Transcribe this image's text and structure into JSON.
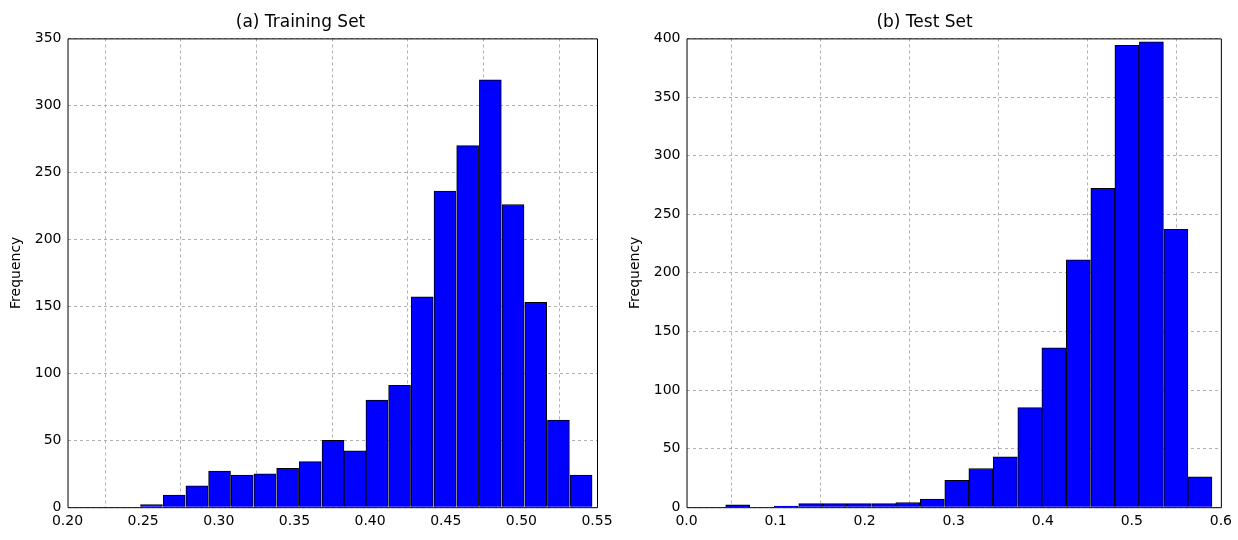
{
  "chart_data": [
    {
      "type": "histogram",
      "title": "(a) Training Set",
      "ylabel": "Frequency",
      "color": "#0000ff",
      "bins": [
        0.248,
        0.263,
        0.278,
        0.293,
        0.308,
        0.323,
        0.338,
        0.353,
        0.368,
        0.383,
        0.397,
        0.412,
        0.427,
        0.442,
        0.457,
        0.472,
        0.487,
        0.502,
        0.517,
        0.532,
        0.547
      ],
      "values": [
        2,
        9,
        16,
        27,
        24,
        25,
        29,
        34,
        50,
        42,
        80,
        91,
        157,
        236,
        270,
        319,
        226,
        153,
        65,
        24
      ],
      "xlim": [
        0.2,
        0.55
      ],
      "xticks": [
        {
          "value": 0.2,
          "label": "0.20"
        },
        {
          "value": 0.25,
          "label": "0.25"
        },
        {
          "value": 0.3,
          "label": "0.30"
        },
        {
          "value": 0.35,
          "label": "0.35"
        },
        {
          "value": 0.4,
          "label": "0.40"
        },
        {
          "value": 0.45,
          "label": "0.45"
        },
        {
          "value": 0.5,
          "label": "0.50"
        },
        {
          "value": 0.55,
          "label": "0.55"
        }
      ],
      "ylim": [
        0,
        350
      ],
      "yticks": [
        0,
        50,
        100,
        150,
        200,
        250,
        300,
        350
      ],
      "grid": true,
      "legend": false
    },
    {
      "type": "histogram",
      "title": "(b) Test Set",
      "ylabel": "Frequency",
      "color": "#0000ff",
      "bins": [
        0.044,
        0.071,
        0.098,
        0.126,
        0.153,
        0.18,
        0.208,
        0.235,
        0.262,
        0.29,
        0.317,
        0.344,
        0.372,
        0.399,
        0.426,
        0.454,
        0.481,
        0.508,
        0.536,
        0.563,
        0.59
      ],
      "values": [
        2,
        0,
        1,
        3,
        3,
        3,
        3,
        4,
        7,
        23,
        33,
        43,
        85,
        136,
        211,
        272,
        394,
        397,
        237,
        26
      ],
      "xlim": [
        0,
        0.6
      ],
      "xticks": [
        {
          "value": 0,
          "label": "0.0"
        },
        {
          "value": 0.1,
          "label": "0.1"
        },
        {
          "value": 0.2,
          "label": "0.2"
        },
        {
          "value": 0.3,
          "label": "0.3"
        },
        {
          "value": 0.4,
          "label": "0.4"
        },
        {
          "value": 0.5,
          "label": "0.5"
        },
        {
          "value": 0.6,
          "label": "0.6"
        }
      ],
      "ylim": [
        0,
        400
      ],
      "yticks": [
        0,
        50,
        100,
        150,
        200,
        250,
        300,
        350,
        400
      ],
      "grid": true,
      "legend": false
    }
  ]
}
